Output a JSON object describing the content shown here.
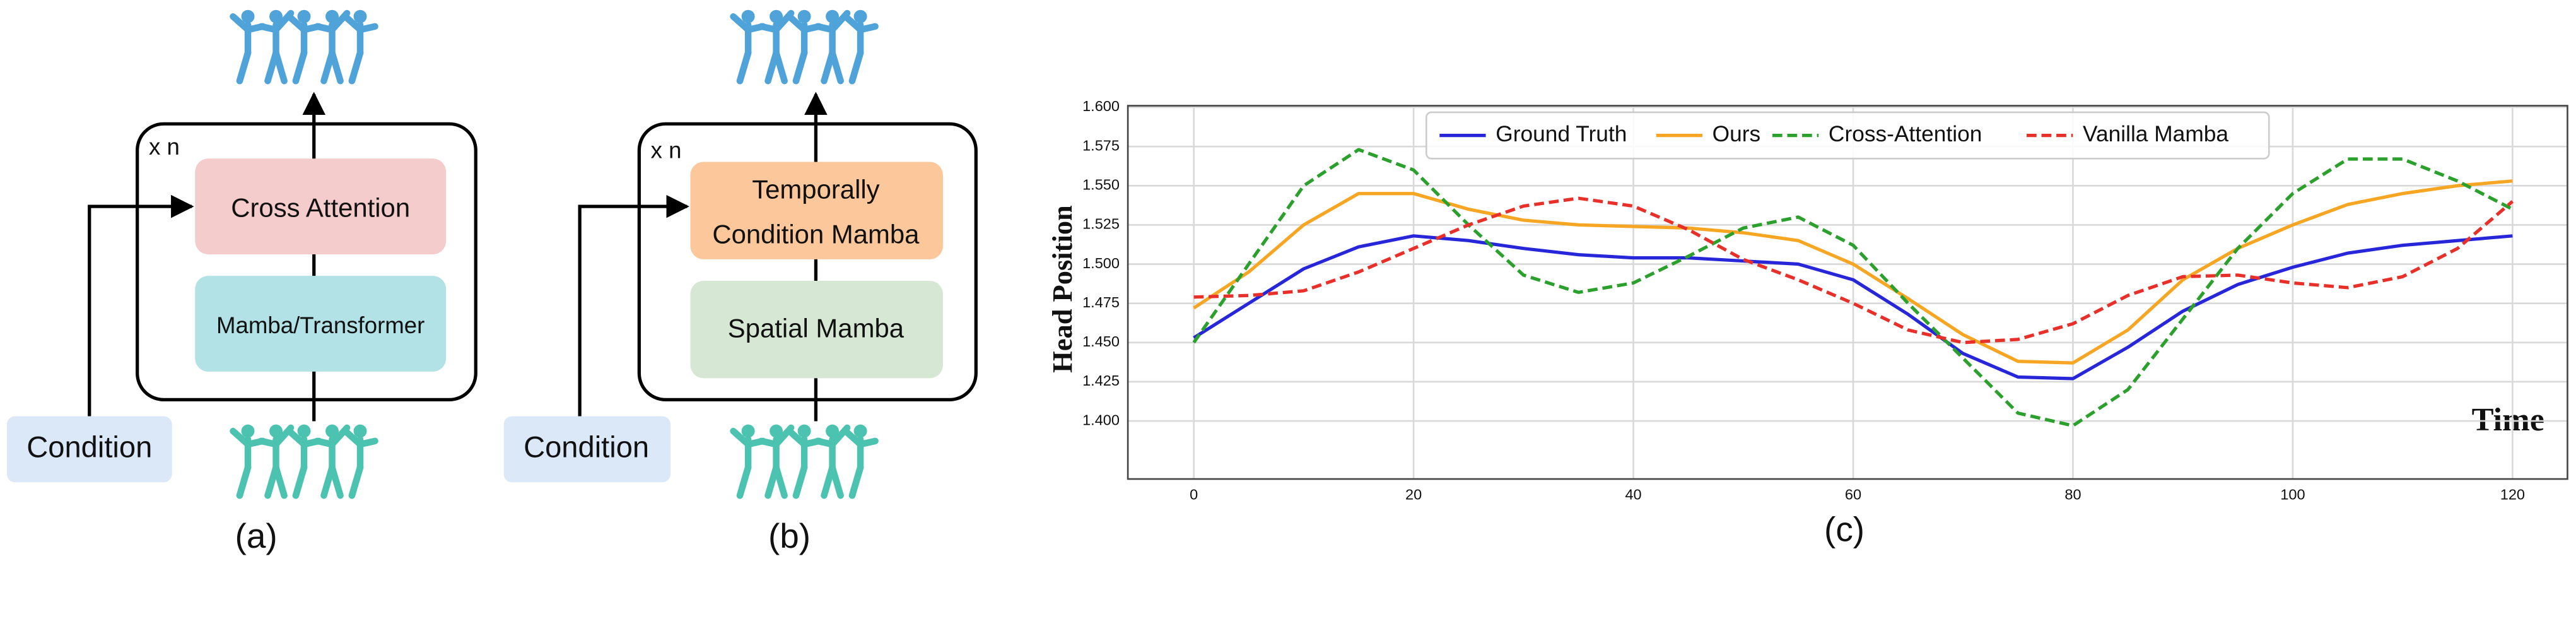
{
  "diagram_a": {
    "repeat": "x n",
    "top_block": "Cross Attention",
    "bottom_block": "Mamba/Transformer",
    "condition": "Condition",
    "caption": "(a)"
  },
  "diagram_b": {
    "repeat": "x n",
    "top_block": [
      "Temporally",
      "Condition Mamba"
    ],
    "bottom_block": "Spatial Mamba",
    "condition": "Condition",
    "caption": "(b)"
  },
  "chart_data": {
    "type": "line",
    "caption": "(c)",
    "x_label": "Time",
    "y_label": "Head Position",
    "x": [
      0,
      5,
      10,
      15,
      20,
      25,
      30,
      35,
      40,
      45,
      50,
      55,
      60,
      65,
      70,
      75,
      80,
      85,
      90,
      95,
      100,
      105,
      110,
      115,
      120
    ],
    "series": [
      {
        "name": "Ground Truth",
        "color": "#2727d9",
        "linestyle": "solid",
        "values": [
          1.453,
          1.475,
          1.497,
          1.511,
          1.518,
          1.515,
          1.51,
          1.506,
          1.504,
          1.504,
          1.502,
          1.5,
          1.49,
          1.468,
          1.443,
          1.428,
          1.427,
          1.447,
          1.47,
          1.487,
          1.498,
          1.507,
          1.512,
          1.515,
          1.518
        ]
      },
      {
        "name": "Ours",
        "color": "#f6a623",
        "linestyle": "solid",
        "values": [
          1.472,
          1.495,
          1.525,
          1.545,
          1.545,
          1.535,
          1.528,
          1.525,
          1.524,
          1.523,
          1.52,
          1.515,
          1.5,
          1.478,
          1.455,
          1.438,
          1.437,
          1.458,
          1.49,
          1.51,
          1.525,
          1.538,
          1.545,
          1.55,
          1.553
        ]
      },
      {
        "name": "Cross-Attention",
        "color": "#2ca02c",
        "linestyle": "dashed",
        "values": [
          1.45,
          1.5,
          1.55,
          1.573,
          1.56,
          1.525,
          1.493,
          1.482,
          1.488,
          1.505,
          1.523,
          1.53,
          1.512,
          1.475,
          1.44,
          1.405,
          1.397,
          1.42,
          1.465,
          1.51,
          1.545,
          1.567,
          1.567,
          1.553,
          1.535
        ]
      },
      {
        "name": "Vanilla Mamba",
        "color": "#e8302a",
        "linestyle": "dashed",
        "values": [
          1.479,
          1.48,
          1.483,
          1.495,
          1.51,
          1.525,
          1.537,
          1.542,
          1.537,
          1.522,
          1.503,
          1.49,
          1.475,
          1.458,
          1.45,
          1.452,
          1.462,
          1.48,
          1.492,
          1.493,
          1.488,
          1.485,
          1.492,
          1.51,
          1.54
        ]
      }
    ],
    "xlim": [
      -6,
      125
    ],
    "ylim": [
      1.363,
      1.601
    ],
    "xticks": [
      0,
      20,
      40,
      60,
      80,
      100,
      120
    ],
    "yticks": [
      {
        "value": 1.4,
        "label": "1.400"
      },
      1.425,
      {
        "value": 1.45,
        "label": "1.450"
      },
      1.475,
      {
        "value": 1.5,
        "label": "1.500"
      },
      1.525,
      {
        "value": 1.55,
        "label": "1.550"
      },
      1.575,
      {
        "value": 1.6,
        "label": "1.600"
      }
    ],
    "grid": true,
    "legend": "upper center"
  }
}
